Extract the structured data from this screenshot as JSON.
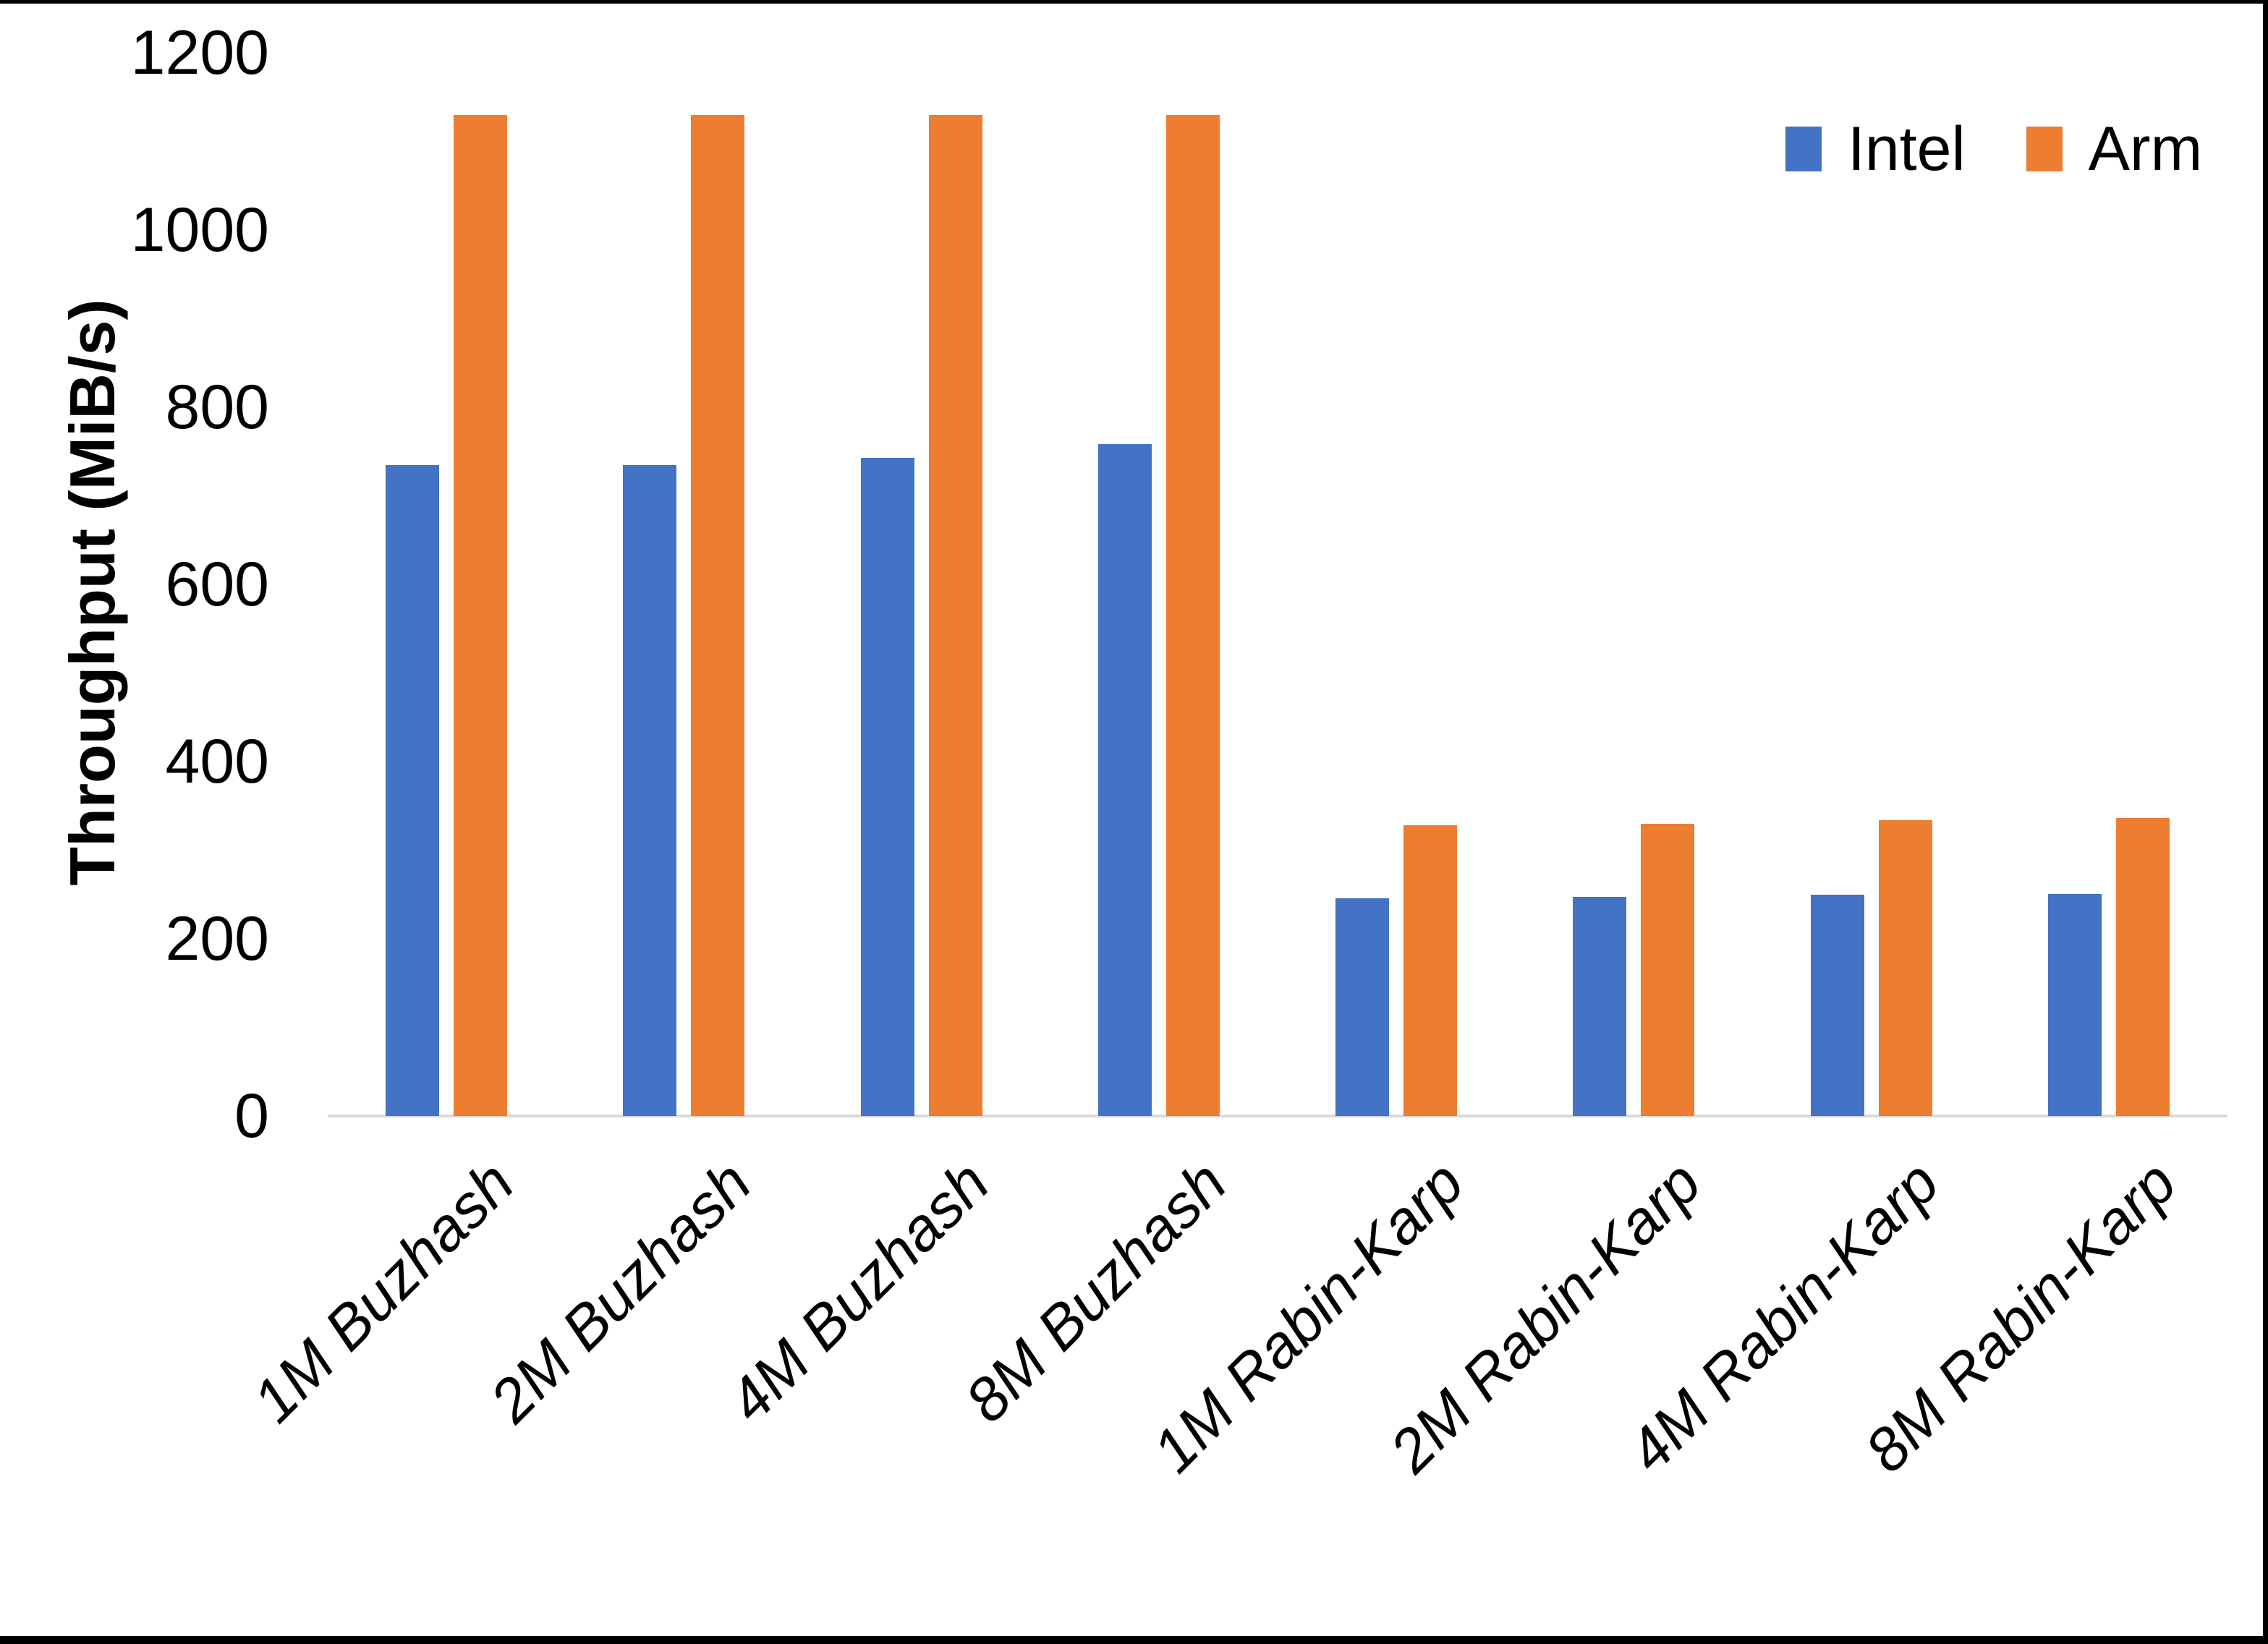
{
  "chart_data": {
    "type": "bar",
    "title": "",
    "xlabel": "",
    "ylabel": "Throughput (MiB/s)",
    "categories": [
      "1M Buzhash",
      "2M Buzhash",
      "4M Buzhash",
      "8M Buzhash",
      "1M Rabin-Karp",
      "2M Rabin-Karp",
      "4M Rabin-Karp",
      "8M Rabin-Karp"
    ],
    "series": [
      {
        "name": "Intel",
        "color": "#4472C4",
        "values": [
          735,
          735,
          743,
          758,
          246,
          247,
          250,
          251
        ]
      },
      {
        "name": "Arm",
        "color": "#ED7D31",
        "values": [
          1130,
          1130,
          1130,
          1130,
          328,
          330,
          334,
          336
        ]
      }
    ],
    "ylim": [
      0,
      1200
    ],
    "ytick_step": 200,
    "yticks": [
      0,
      200,
      400,
      600,
      800,
      1000,
      1200
    ],
    "grid": false,
    "legend_position": "top-right",
    "axis_line_color": "#D9D9D9",
    "text_color": "#000000",
    "background": "#FFFFFF",
    "frame_color": "#000000"
  }
}
